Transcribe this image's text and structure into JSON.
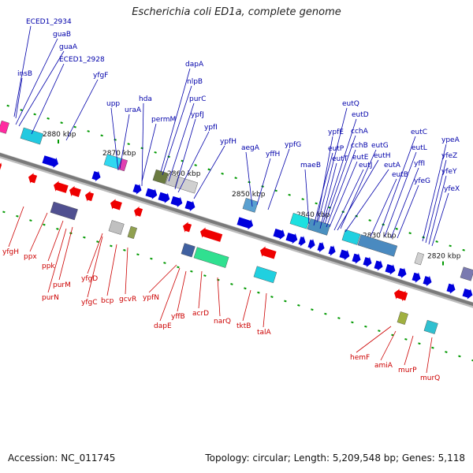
{
  "title": "Escherichia coli ED1a, complete genome",
  "footer": {
    "accession_label": "Accession: NC_011745",
    "summary": "Topology: circular; Length: 5,209,548 bp; Genes: 5,118"
  },
  "colors": {
    "forward_gene": "#0000dd",
    "reverse_gene": "#ee0000",
    "forward_label": "#0000aa",
    "reverse_label": "#cc0000",
    "backbone": "#7a7a7a",
    "tick_text": "#111111",
    "track_dots": "#009900"
  },
  "ticks": [
    "2880 kbp",
    "2870 kbp",
    "2860 kbp",
    "2850 kbp",
    "2840 kbp",
    "2830 kbp",
    "2820 kbp"
  ],
  "top_labels": [
    "ECED1_2934",
    "guaB",
    "guaA",
    "ECED1_2928",
    "insB",
    "yfgF",
    "dapA",
    "nlpB",
    "hda",
    "purC",
    "upp",
    "uraA",
    "permM",
    "ypfJ",
    "ypfI",
    "ypfH",
    "aegA",
    "yffH",
    "ypfG",
    "eutQ",
    "eutD",
    "ypfE",
    "cchA",
    "eutP",
    "cchB",
    "eutT",
    "eutE",
    "eutG",
    "maeB",
    "eutJ",
    "eutA",
    "eutH",
    "eutB",
    "eutC",
    "eutL",
    "ypeA",
    "yffI",
    "yfeZ",
    "yfeG",
    "yfeY",
    "yfeX"
  ],
  "bottom_labels": [
    "yfgH",
    "ppx",
    "ppk",
    "purM",
    "purN",
    "yfgD",
    "yfgC",
    "bcp",
    "gcvR",
    "ypfN",
    "dapE",
    "yffB",
    "acrD",
    "narQ",
    "tktB",
    "talA",
    "hemF",
    "amiA",
    "murP",
    "murQ"
  ]
}
